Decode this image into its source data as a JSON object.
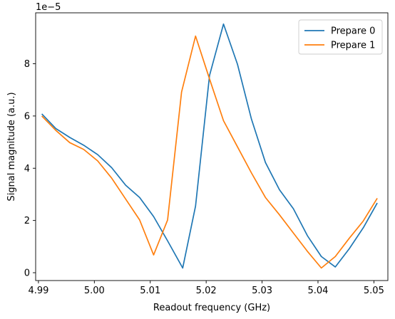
{
  "chart_data": {
    "type": "line",
    "title": "",
    "xlabel": "Readout frequency (GHz)",
    "ylabel": "Signal magnitude (a.u.)",
    "offset_label": "1e−5",
    "xlim": [
      4.9895,
      5.0525
    ],
    "ylim": [
      -0.3,
      9.95
    ],
    "x_ticks": [
      4.99,
      5.0,
      5.01,
      5.02,
      5.03,
      5.04,
      5.05
    ],
    "x_tick_labels": [
      "4.99",
      "5.00",
      "5.01",
      "5.02",
      "5.03",
      "5.04",
      "5.05"
    ],
    "y_ticks": [
      0,
      2,
      4,
      6,
      8
    ],
    "y_tick_labels": [
      "0",
      "2",
      "4",
      "6",
      "8"
    ],
    "grid": false,
    "legend_position": "top-right",
    "series": [
      {
        "name": "Prepare 0",
        "color": "#1f77b4",
        "x": [
          4.9906,
          4.9931,
          4.9956,
          4.9981,
          5.0006,
          5.0031,
          5.0056,
          5.0081,
          5.0106,
          5.0131,
          5.0158,
          5.0181,
          5.0206,
          5.0231,
          5.0256,
          5.0281,
          5.0306,
          5.0331,
          5.0356,
          5.0381,
          5.0406,
          5.0431,
          5.0456,
          5.0481,
          5.0506
        ],
        "values": [
          6.08,
          5.52,
          5.18,
          4.88,
          4.52,
          4.02,
          3.35,
          2.88,
          2.15,
          1.22,
          0.18,
          2.55,
          7.55,
          9.52,
          7.98,
          5.88,
          4.22,
          3.18,
          2.45,
          1.42,
          0.62,
          0.22,
          0.92,
          1.72,
          2.67
        ]
      },
      {
        "name": "Prepare 1",
        "color": "#ff7f0e",
        "x": [
          4.9906,
          4.9931,
          4.9956,
          4.9981,
          5.0006,
          5.0031,
          5.0056,
          5.0081,
          5.0106,
          5.0131,
          5.0156,
          5.0181,
          5.0206,
          5.0231,
          5.0256,
          5.0281,
          5.0306,
          5.0331,
          5.0356,
          5.0381,
          5.0406,
          5.0431,
          5.0456,
          5.0481,
          5.0506
        ],
        "values": [
          6.0,
          5.45,
          4.98,
          4.72,
          4.28,
          3.62,
          2.82,
          2.02,
          0.68,
          2.02,
          6.92,
          9.06,
          7.42,
          5.82,
          4.82,
          3.82,
          2.88,
          2.22,
          1.52,
          0.82,
          0.18,
          0.62,
          1.32,
          1.98,
          2.85
        ]
      }
    ]
  }
}
